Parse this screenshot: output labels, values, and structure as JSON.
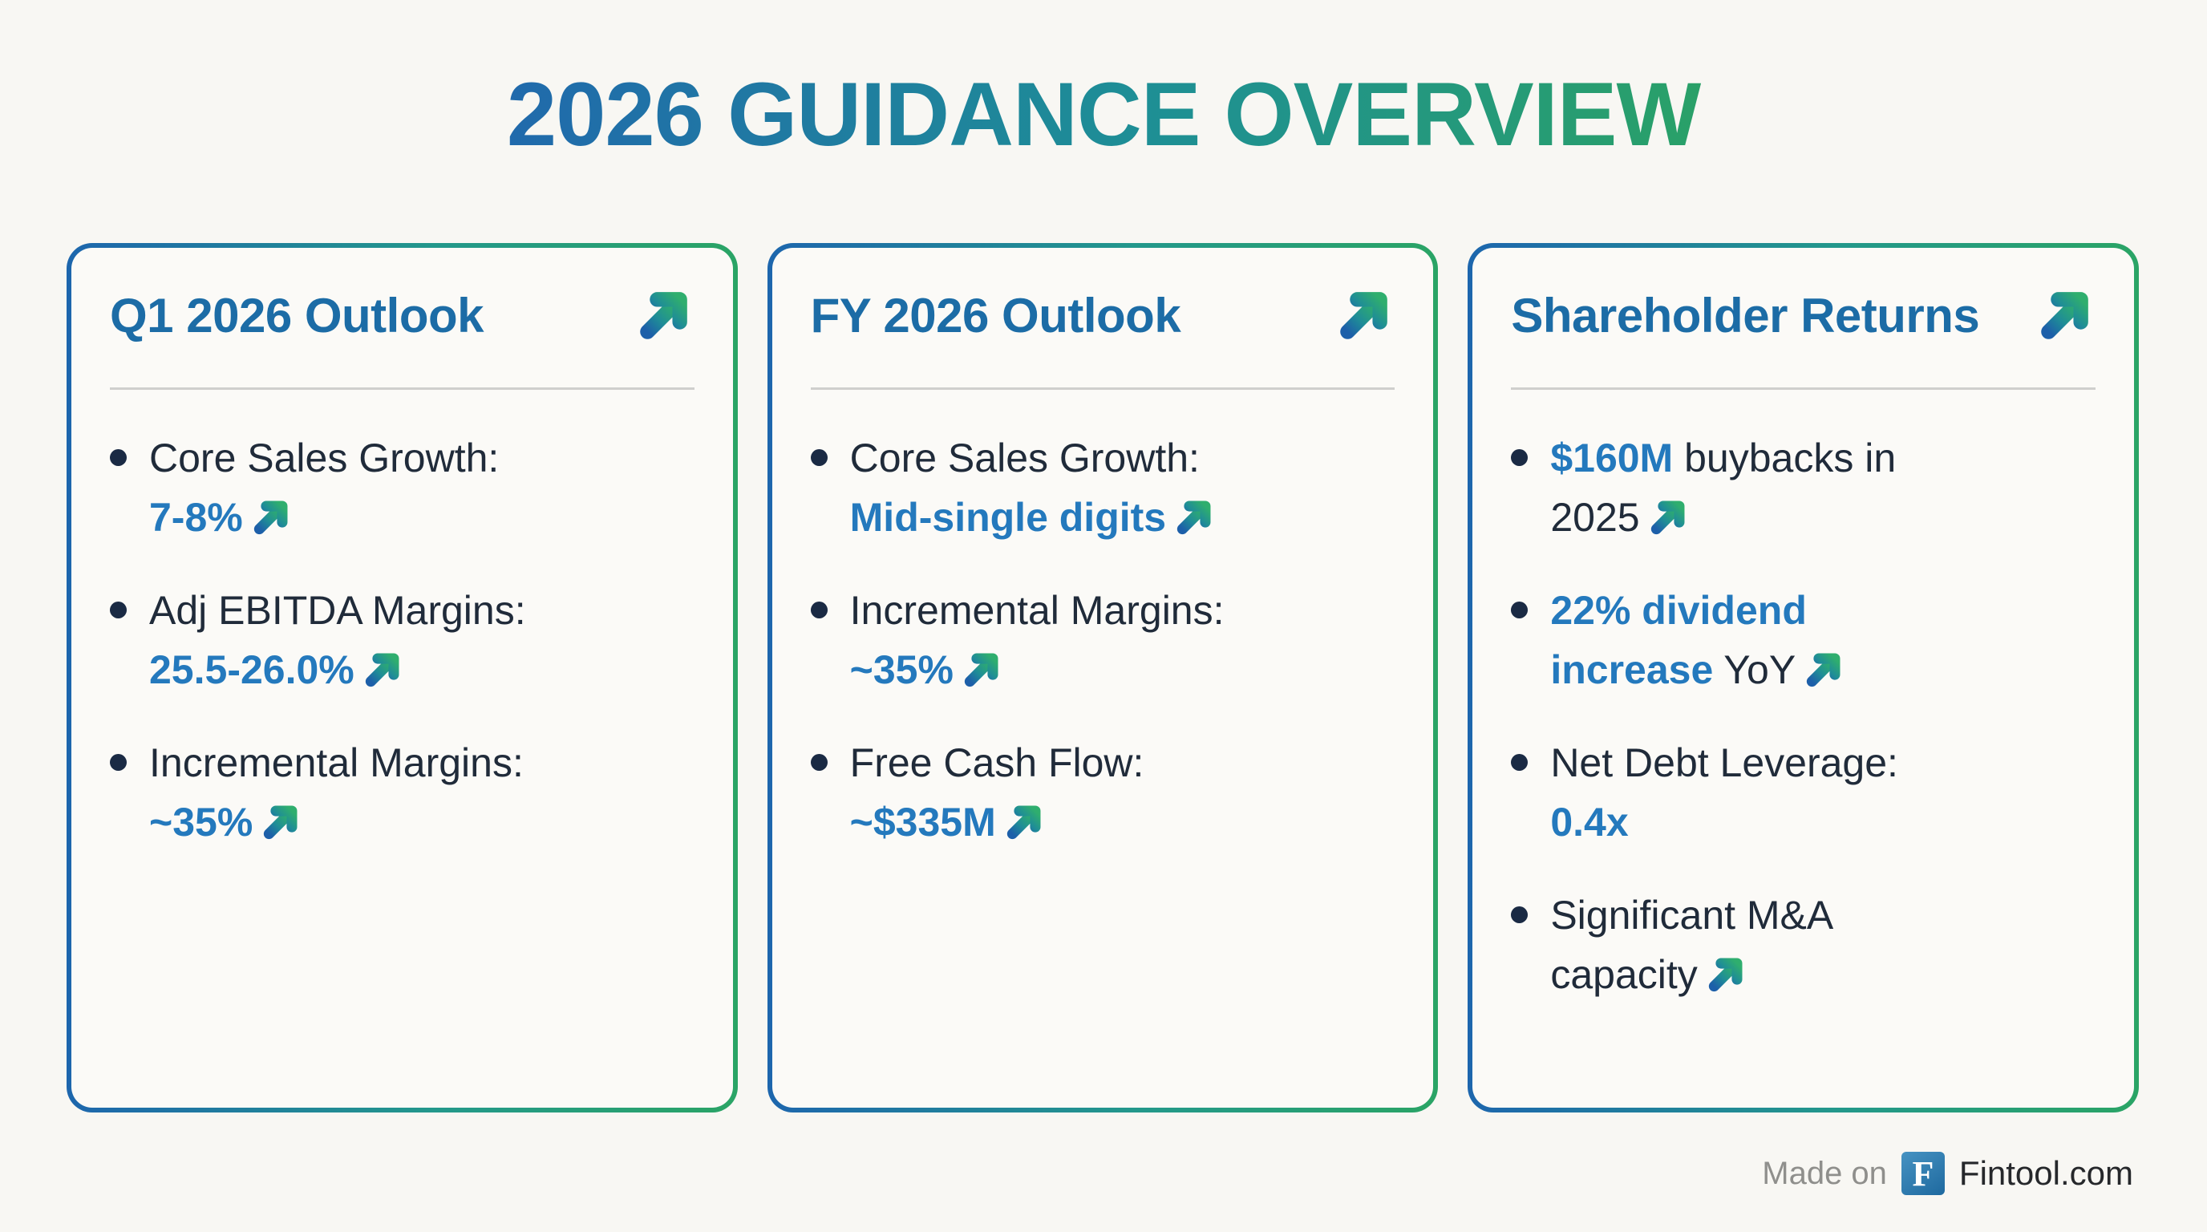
{
  "page": {
    "title": "2026 GUIDANCE OVERVIEW",
    "background": "#f8f7f3"
  },
  "colors": {
    "gradient_blue": "#1d66ad",
    "gradient_teal": "#1f8d97",
    "gradient_green": "#2aa465",
    "heading_blue": "#1c6ca6",
    "value_blue": "#2479bd",
    "body_dark": "#202b3a",
    "bullet_navy": "#1a2a44",
    "divider_gray": "#cfcfcd",
    "footer_gray": "#8f8f8c",
    "badge_blue": "#1e699f"
  },
  "icons": {
    "trend": "arrow-up-right",
    "bullet": "dot",
    "brand": "fintool-f-badge"
  },
  "cards": [
    {
      "title": "Q1 2026 Outlook",
      "items": [
        {
          "label": "Core Sales Growth:",
          "value": "7-8%"
        },
        {
          "label": "Adj EBITDA Margins:",
          "value": "25.5-26.0%"
        },
        {
          "label": "Incremental Margins:",
          "value": "~35%"
        }
      ]
    },
    {
      "title": "FY 2026 Outlook",
      "items": [
        {
          "label": "Core Sales Growth:",
          "value": "Mid-single digits"
        },
        {
          "label": "Incremental Margins:",
          "value": "~35%"
        },
        {
          "label": "Free Cash Flow:",
          "value": "~$335M"
        }
      ]
    },
    {
      "title": "Shareholder Returns",
      "items": [
        {
          "value": "$160M",
          "text": "buybacks in 2025"
        },
        {
          "value": "22% dividend increase",
          "text": "YoY"
        },
        {
          "label": "Net Debt Leverage:",
          "value": "0.4x"
        },
        {
          "text": "Significant M&A capacity"
        }
      ]
    }
  ],
  "footer": {
    "made_on": "Made on",
    "brand_letter": "F",
    "brand": "Fintool.com"
  }
}
